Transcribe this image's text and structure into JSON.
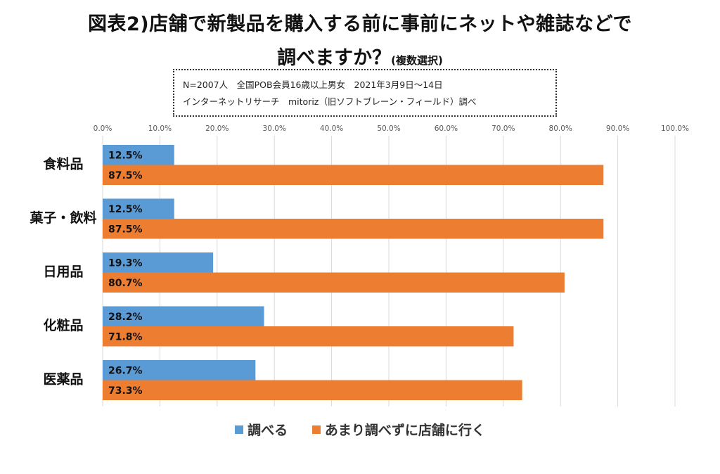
{
  "title_line1": "図表2)店舗で新製品を購入する前に事前にネットや雑誌などで",
  "title_line2_main": "調べますか？",
  "title_line2_small": "(複数選択)",
  "note_line1": "N=2007人　全国POB会員16歳以上男女　2021年3月9日～14日",
  "note_line2": "インターネットリサーチ　mitoriz（旧ソフトブレーン・フィールド）調べ",
  "chart_data": {
    "type": "bar",
    "orientation": "horizontal",
    "categories": [
      "食料品",
      "菓子・飲料",
      "日用品",
      "化粧品",
      "医薬品"
    ],
    "series": [
      {
        "name": "調べる",
        "color": "#5B9BD5",
        "values": [
          12.5,
          12.5,
          19.3,
          28.2,
          26.7
        ]
      },
      {
        "name": "あまり調べずに店舗に行く",
        "color": "#ED7D31",
        "values": [
          87.5,
          87.5,
          80.7,
          71.8,
          73.3
        ]
      }
    ],
    "xlim": [
      0,
      100
    ],
    "x_ticks": [
      "0.0%",
      "10.0%",
      "20.0%",
      "30.0%",
      "40.0%",
      "50.0%",
      "60.0%",
      "70.0%",
      "80.0%",
      "90.0%",
      "100.0%"
    ],
    "grid": true,
    "legend_position": "bottom"
  }
}
